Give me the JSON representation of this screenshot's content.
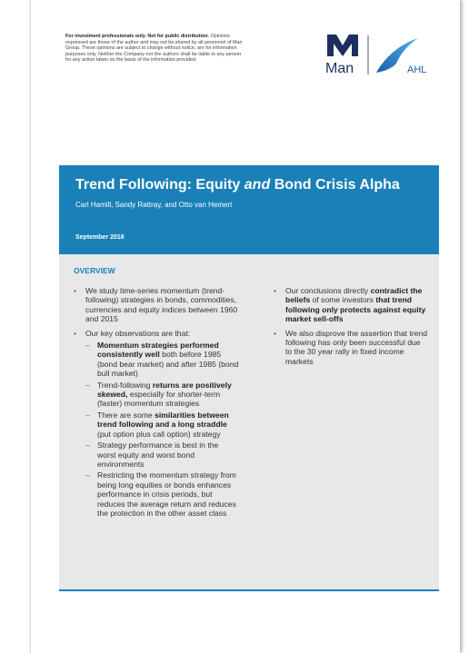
{
  "header": {
    "disclaimer": [
      {
        "text": "For investment professionals only. Not for public distribution.",
        "bold": true
      },
      {
        "text": "Opinions expressed are those of the author and may not be shared by all personnel of Man Group. These opinions are subject to change without notice, are for information purposes only. Neither the Company nor the authors shall be liable to any person for any action taken on the basis of the information provided.",
        "bold": false
      }
    ],
    "logo": {
      "brand": "Man",
      "division": "AHL"
    }
  },
  "banner": {
    "title": [
      {
        "text": "Trend Following: Equity",
        "italic": false
      },
      {
        "text": "and",
        "italic": true
      },
      {
        "text": "Bond Crisis Alpha",
        "italic": false
      }
    ],
    "authors": "Carl Hamill, Sandy Rattray, and Otto van Hemert",
    "date": "September 2016"
  },
  "overview": {
    "heading": "OVERVIEW",
    "left": [
      {
        "parts": [
          {
            "text": "We study time-series momentum (trend-following) strategies in bonds, commodities, currencies and equity indices between 1960 and 2015",
            "bold": false
          }
        ]
      },
      {
        "parts": [
          {
            "text": "Our key observations are that:",
            "bold": false
          }
        ],
        "subitems": [
          {
            "parts": [
              {
                "text": "Momentum strategies performed consistently well",
                "bold": true
              },
              {
                "text": "both before 1985 (bond bear market) and after 1985 (bond bull market)",
                "bold": false
              }
            ]
          },
          {
            "parts": [
              {
                "text": "Trend-following",
                "bold": false
              },
              {
                "text": "returns are positively skewed,",
                "bold": true
              },
              {
                "text": "especially for shorter-term (faster) momentum strategies",
                "bold": false
              }
            ]
          },
          {
            "parts": [
              {
                "text": "There are some",
                "bold": false
              },
              {
                "text": "similarities between trend following and a long straddle",
                "bold": true
              },
              {
                "text": "(put option plus call option) strategy",
                "bold": false
              }
            ]
          },
          {
            "parts": [
              {
                "text": "Strategy performance is best in the worst equity and worst bond environments",
                "bold": false
              }
            ]
          },
          {
            "parts": [
              {
                "text": "Restricting the momentum strategy from being long equities or bonds enhances performance in crisis periods, but reduces the average return and reduces the protection in the other asset class",
                "bold": false
              }
            ]
          }
        ]
      }
    ],
    "right": [
      {
        "parts": [
          {
            "text": "Our conclusions directly",
            "bold": false
          },
          {
            "text": "contradict the beliefs",
            "bold": true
          },
          {
            "text": "of some investors",
            "bold": false
          },
          {
            "text": "that trend following only protects against equity market sell-offs",
            "bold": true
          }
        ]
      },
      {
        "parts": [
          {
            "text": "We also disprove the assertion that trend following has only been successful due to the 30 year rally in fixed income markets",
            "bold": false
          }
        ]
      }
    ]
  }
}
